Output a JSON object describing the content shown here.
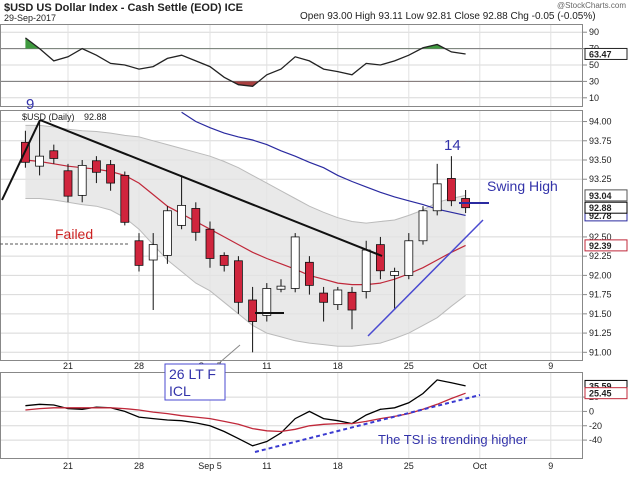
{
  "chart_data": [
    {
      "type": "candlestick",
      "title": "$USD US Dollar Index - Cash Settle (EOD) ICE",
      "date": "29-Sep-2017",
      "quote": "Open 93.00 High 93.11 Low 92.81 Close 92.88 Chg -0.05 (-0.05%)",
      "source": "@StockCharts.com",
      "label": "$USD (Daily)",
      "annotations": {
        "count_start": "9",
        "count_top": "14",
        "swing_high": "Swing High",
        "failed": "Failed",
        "icl_note": [
          "26 LT F",
          "ICL"
        ]
      },
      "categories": [
        null,
        null,
        null,
        "21",
        null,
        null,
        null,
        null,
        "28",
        null,
        null,
        null,
        null,
        "Sep 5",
        null,
        null,
        null,
        "11",
        null,
        null,
        null,
        null,
        "18",
        null,
        null,
        null,
        null,
        "25",
        null,
        null,
        null,
        null,
        "Oct",
        null,
        null,
        null,
        null,
        "9",
        null,
        null
      ],
      "open": [
        93.73,
        93.42,
        93.62,
        93.36,
        93.04,
        93.49,
        93.44,
        93.3,
        92.45,
        92.2,
        92.26,
        92.65,
        92.87,
        92.6,
        92.26,
        92.19,
        91.68,
        91.48,
        91.82,
        91.83,
        92.17,
        91.77,
        91.62,
        91.78,
        91.79,
        92.4,
        92.0,
        92.0,
        92.45,
        92.84,
        93.26,
        93.0,
        null,
        null,
        null,
        null,
        null,
        null,
        null,
        null
      ],
      "high": [
        93.88,
        94.0,
        93.7,
        93.45,
        93.5,
        93.55,
        93.5,
        93.35,
        92.55,
        92.55,
        92.9,
        93.3,
        92.95,
        92.7,
        92.3,
        92.25,
        91.85,
        91.9,
        91.95,
        92.55,
        92.25,
        91.85,
        91.85,
        91.85,
        92.45,
        92.5,
        92.1,
        92.55,
        92.9,
        93.45,
        93.55,
        93.11,
        null,
        null,
        null,
        null,
        null,
        null,
        null,
        null
      ],
      "low": [
        93.4,
        93.3,
        93.45,
        92.95,
        92.95,
        93.2,
        93.1,
        92.65,
        92.05,
        91.55,
        92.15,
        92.6,
        92.45,
        92.1,
        92.05,
        91.5,
        91.0,
        91.4,
        91.78,
        91.78,
        91.75,
        91.4,
        91.55,
        91.3,
        91.7,
        91.95,
        91.55,
        91.95,
        92.4,
        92.78,
        92.9,
        92.81,
        null,
        null,
        null,
        null,
        null,
        null,
        null,
        null
      ],
      "close": [
        93.47,
        93.55,
        93.52,
        93.03,
        93.43,
        93.34,
        93.2,
        92.69,
        92.13,
        92.4,
        92.84,
        92.91,
        92.56,
        92.22,
        92.13,
        91.65,
        91.4,
        91.83,
        91.86,
        92.5,
        91.87,
        91.65,
        91.81,
        91.55,
        92.33,
        92.06,
        92.05,
        92.45,
        92.84,
        93.19,
        92.97,
        92.88,
        null,
        null,
        null,
        null,
        null,
        null,
        null,
        null
      ],
      "up_color": "#ffffff",
      "down_color": "#d0253d",
      "band": {
        "color": "#e4e4e4",
        "upper": [
          93.95,
          93.95,
          93.93,
          93.9,
          93.88,
          93.87,
          93.85,
          93.82,
          93.8,
          93.75,
          93.7,
          93.65,
          93.6,
          93.55,
          93.48,
          93.4,
          93.3,
          93.2,
          93.1,
          93.0,
          92.9,
          92.82,
          92.75,
          92.7,
          92.68,
          92.7,
          92.72,
          92.78,
          92.85,
          92.95,
          93.0,
          93.04,
          null,
          null,
          null,
          null,
          null,
          null,
          null,
          null
        ],
        "lower": [
          93.0,
          93.0,
          92.98,
          92.95,
          92.92,
          92.9,
          92.85,
          92.75,
          92.6,
          92.4,
          92.2,
          92.05,
          91.9,
          91.8,
          91.65,
          91.5,
          91.35,
          91.25,
          91.2,
          91.15,
          91.12,
          91.1,
          91.08,
          91.08,
          91.1,
          91.12,
          91.18,
          91.25,
          91.35,
          91.45,
          91.6,
          91.74,
          null,
          null,
          null,
          null,
          null,
          null,
          null,
          null
        ]
      },
      "series": [
        {
          "color": "#c0283a",
          "values": [
            93.5,
            93.48,
            93.45,
            93.42,
            93.4,
            93.38,
            93.35,
            93.3,
            93.2,
            93.05,
            92.9,
            92.8,
            92.7,
            92.6,
            92.5,
            92.4,
            92.3,
            92.22,
            92.15,
            92.08,
            92.0,
            91.95,
            91.9,
            91.88,
            91.88,
            91.9,
            91.95,
            92.02,
            92.1,
            92.2,
            92.3,
            92.39,
            null,
            null,
            null,
            null,
            null,
            null,
            null,
            null
          ]
        },
        {
          "color": "#2a2aa0",
          "values": [
            null,
            null,
            null,
            null,
            null,
            null,
            null,
            null,
            null,
            null,
            null,
            94.12,
            94.0,
            93.92,
            93.85,
            93.8,
            93.76,
            93.7,
            93.62,
            93.55,
            93.47,
            93.4,
            93.3,
            93.22,
            93.15,
            93.08,
            93.02,
            92.97,
            92.92,
            92.86,
            92.82,
            92.78,
            null,
            null,
            null,
            null,
            null,
            null,
            null,
            null
          ]
        }
      ],
      "ylim": [
        90.9,
        94.15
      ],
      "yticks": [
        {
          "value": 94,
          "label": "94.00"
        },
        {
          "value": 93.75,
          "label": "93.75"
        },
        {
          "value": 93.5,
          "label": "93.50"
        },
        {
          "value": 93.25,
          "label": "93.25"
        },
        {
          "value": 92.5,
          "label": "92.50"
        },
        {
          "value": 92.25,
          "label": "92.25"
        },
        {
          "value": 92,
          "label": "92.00"
        },
        {
          "value": 91.75,
          "label": "91.75"
        },
        {
          "value": 91.5,
          "label": "91.50"
        },
        {
          "value": 91.25,
          "label": "91.25"
        },
        {
          "value": 91,
          "label": "91.00"
        }
      ],
      "grid": true
    },
    {
      "type": "line",
      "series": [
        {
          "color": "#222222",
          "values": [
            83,
            70,
            55,
            60,
            70,
            62,
            52,
            50,
            45,
            48,
            58,
            62,
            55,
            48,
            35,
            26,
            24,
            38,
            45,
            60,
            55,
            45,
            42,
            38,
            52,
            50,
            55,
            62,
            71,
            75,
            66,
            63.47,
            null,
            null,
            null,
            null,
            null,
            null,
            null,
            null
          ]
        }
      ],
      "overbought": 70,
      "oversold": 30,
      "overbought_color": "#3f9a3f",
      "oversold_color": "#a84040",
      "ylim": [
        0,
        100
      ],
      "yticks": [
        90,
        70,
        50,
        30,
        10
      ],
      "grid": true
    },
    {
      "type": "line",
      "note": "The TSI is trending higher",
      "series": [
        {
          "color": "#000000",
          "values": [
            8,
            10,
            9,
            4,
            3,
            6,
            5,
            0,
            -8,
            -10,
            -12,
            -13,
            -16,
            -20,
            -28,
            -38,
            -48,
            -42,
            -30,
            -10,
            0,
            -10,
            -13,
            -17,
            -5,
            3,
            5,
            12,
            25,
            44,
            40,
            35.59,
            null,
            null,
            null,
            null,
            null,
            null,
            null,
            null
          ]
        },
        {
          "color": "#c0283a",
          "values": [
            2,
            4,
            5,
            5,
            5,
            5,
            5,
            4,
            2,
            -1,
            -3,
            -6,
            -8,
            -10,
            -14,
            -18,
            -24,
            -27,
            -28,
            -25,
            -20,
            -18,
            -17,
            -17,
            -14,
            -10,
            -7,
            -3,
            3,
            10,
            18,
            25.45,
            null,
            null,
            null,
            null,
            null,
            null,
            null,
            null
          ]
        }
      ],
      "ylim": [
        -65,
        55
      ],
      "yticks": [
        20,
        0,
        -20,
        -40
      ],
      "grid": true
    }
  ]
}
